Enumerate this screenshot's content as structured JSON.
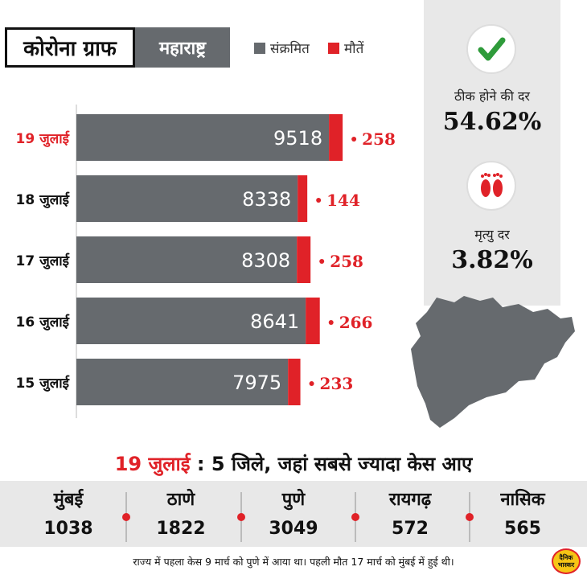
{
  "header": {
    "title": "कोरोना ग्राफ",
    "state": "महाराष्ट्र",
    "legend": [
      {
        "label": "संक्रमित",
        "color": "#666a6e"
      },
      {
        "label": "मौतें",
        "color": "#e02228"
      }
    ]
  },
  "stats": {
    "recovery_label": "ठीक होने की दर",
    "recovery_value": "54.62%",
    "death_label": "मृत्यु दर",
    "death_value": "3.82%",
    "recovery_icon": "check-icon",
    "death_icon": "footprints-icon"
  },
  "chart_data": {
    "type": "bar",
    "orientation": "horizontal",
    "stacked": true,
    "categories": [
      "19 जुलाई",
      "18 जुलाई",
      "17 जुलाई",
      "16 जुलाई",
      "15 जुलाई"
    ],
    "highlight_category": "19 जुलाई",
    "series": [
      {
        "name": "संक्रमित",
        "values": [
          9518,
          8338,
          8308,
          8641,
          7975
        ],
        "color": "#666a6e"
      },
      {
        "name": "मौतें",
        "values": [
          258,
          144,
          258,
          266,
          233
        ],
        "color": "#e02228"
      }
    ],
    "xlim": [
      0,
      10000
    ],
    "title": "",
    "xlabel": "",
    "ylabel": ""
  },
  "districts": {
    "headline_date": "19 जुलाई",
    "headline_text": ": 5 जिले, जहां सबसे ज्यादा केस आए",
    "items": [
      {
        "name": "मुंबई",
        "value": "1038"
      },
      {
        "name": "ठाणे",
        "value": "1822"
      },
      {
        "name": "पुणे",
        "value": "3049"
      },
      {
        "name": "रायगढ़",
        "value": "572"
      },
      {
        "name": "नासिक",
        "value": "565"
      }
    ]
  },
  "footnote": "राज्य में पहला केस 9 मार्च को पुणे में आया था। पहली मौत 17 मार्च को मुंबई में हुई थी।",
  "logo": "दैनिक भास्कर"
}
